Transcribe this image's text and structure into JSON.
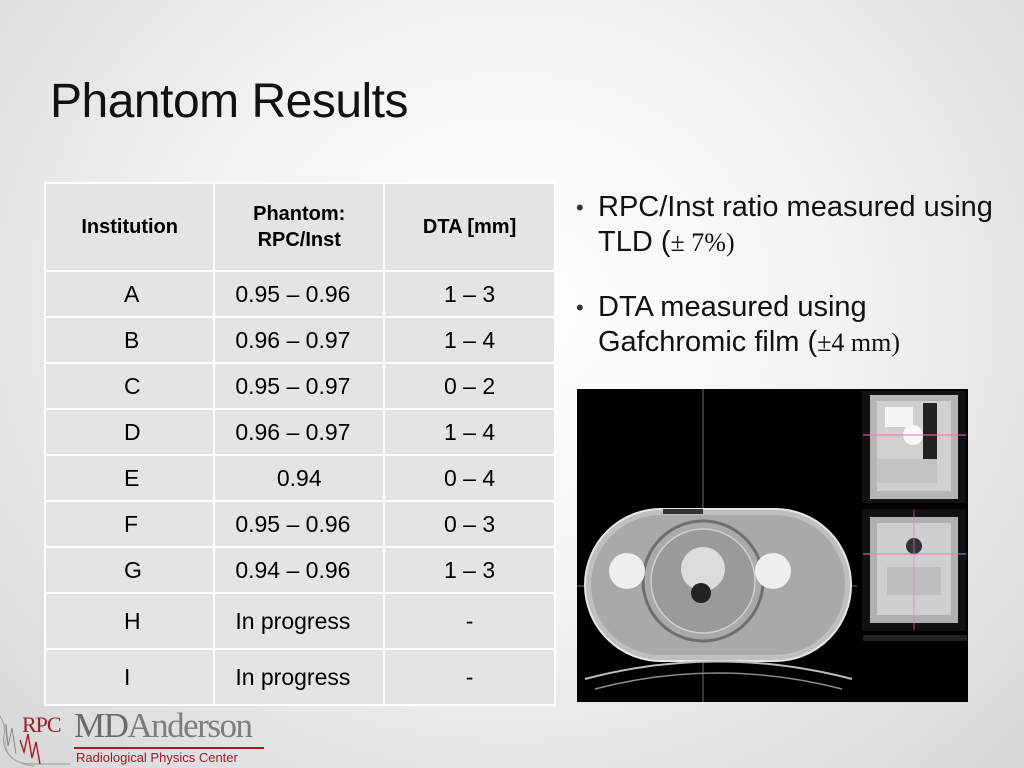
{
  "slide": {
    "title": "Phantom Results"
  },
  "table": {
    "headers": [
      "Institution",
      "Phantom: RPC/Inst",
      "DTA [mm]"
    ],
    "rows": [
      {
        "institution": "A",
        "ratio": "0.95 – 0.96",
        "dta": "1 – 3"
      },
      {
        "institution": "B",
        "ratio": "0.96 – 0.97",
        "dta": "1 – 4"
      },
      {
        "institution": "C",
        "ratio": "0.95 – 0.97",
        "dta": "0 – 2"
      },
      {
        "institution": "D",
        "ratio": "0.96 – 0.97",
        "dta": "1 – 4"
      },
      {
        "institution": "E",
        "ratio": "0.94",
        "dta": "0 – 4"
      },
      {
        "institution": "F",
        "ratio": "0.95 – 0.96",
        "dta": "0 – 3"
      },
      {
        "institution": "G",
        "ratio": "0.94 – 0.96",
        "dta": "1 – 3"
      },
      {
        "institution": "H",
        "ratio": "In progress",
        "dta": "-"
      },
      {
        "institution": "I",
        "ratio": "In progress",
        "dta": "-"
      }
    ]
  },
  "bullets": [
    {
      "text": "RPC/Inst ratio measured using TLD (",
      "tol": "± 7%",
      "close": ")"
    },
    {
      "text": "DTA measured using Gafchromic film (",
      "tol": "±4 mm",
      "close": ")"
    }
  ],
  "logo": {
    "rpc": "RPC",
    "name_md": "MD",
    "name_rest": "Anderson",
    "subtitle": "Radiological Physics Center",
    "accent": "#a11c2c"
  }
}
